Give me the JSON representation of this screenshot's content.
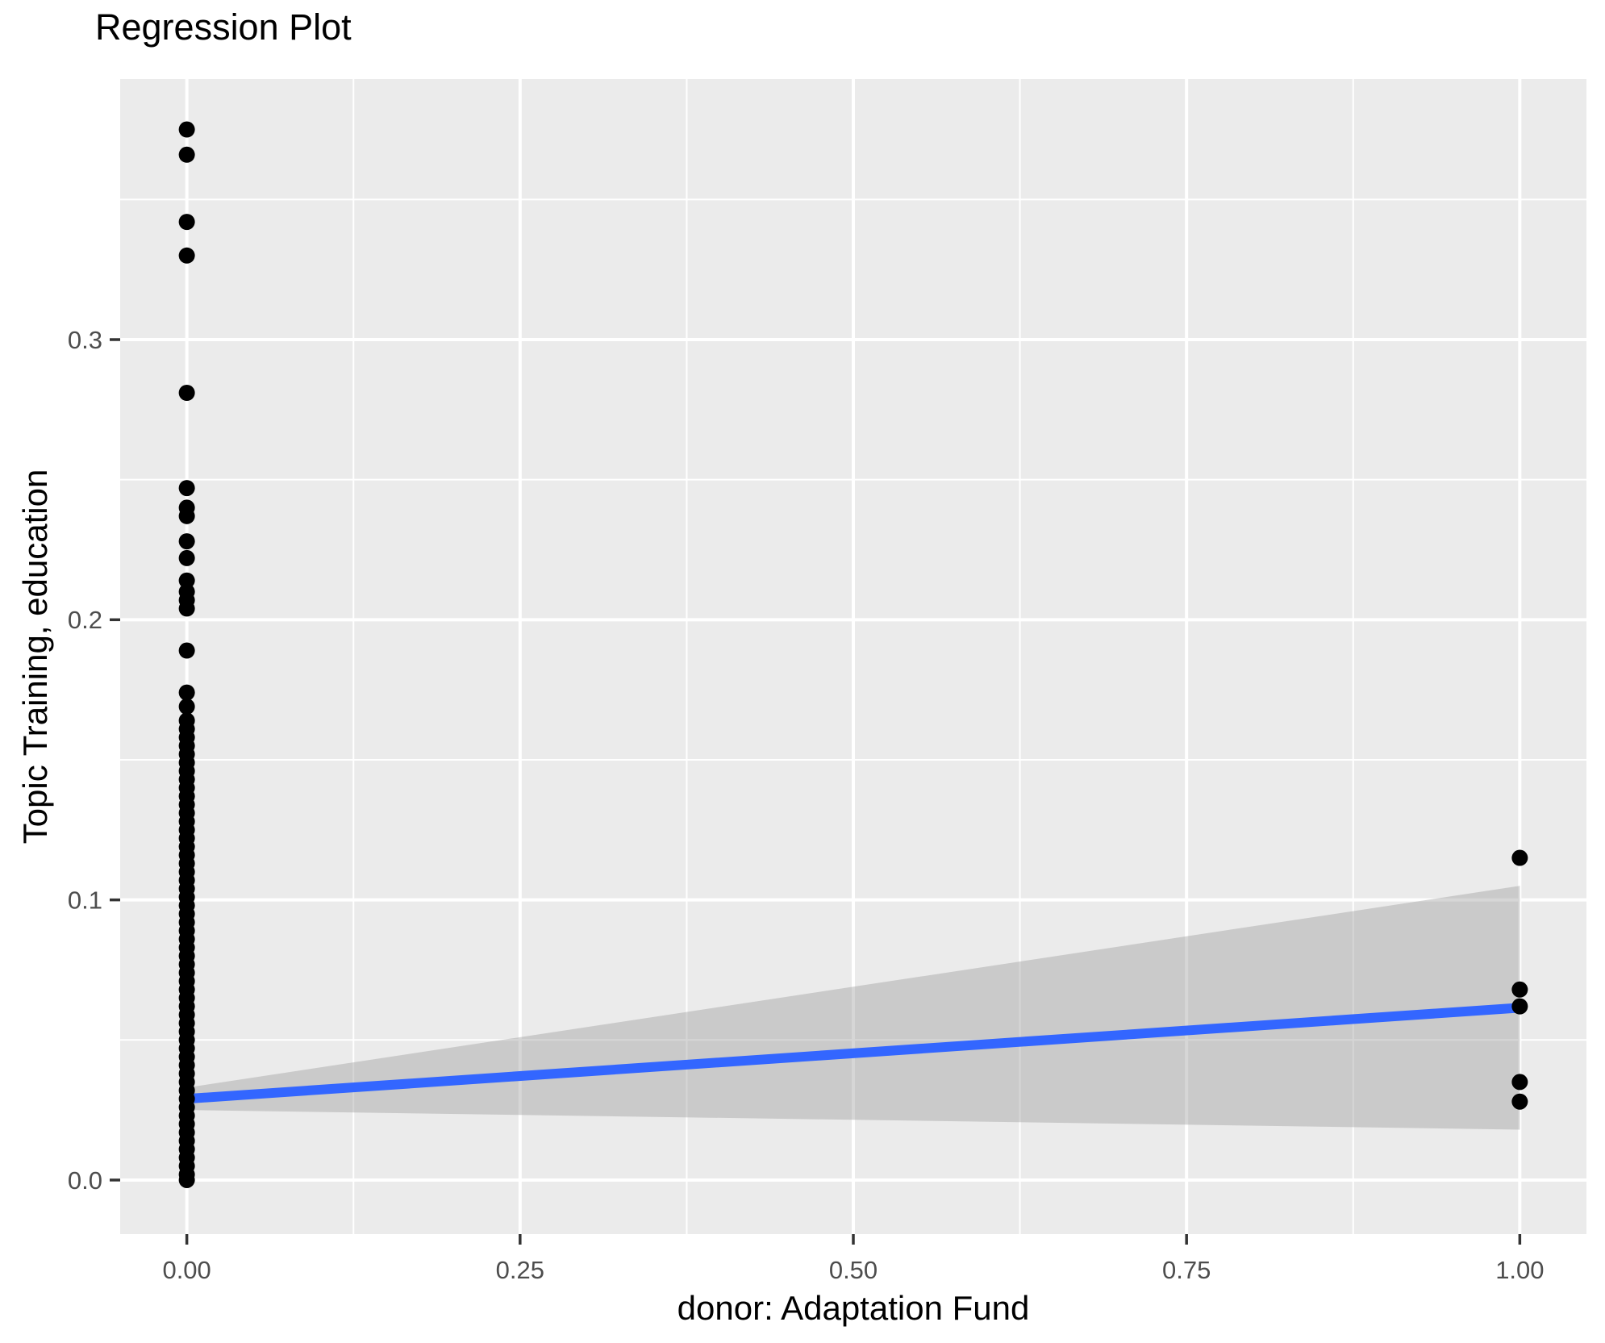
{
  "chart_data": {
    "type": "scatter",
    "title": "Regression Plot",
    "xlabel": "donor: Adaptation Fund",
    "ylabel": "Topic Training, education",
    "legend": "none",
    "grid": true,
    "xlim": [
      -0.05,
      1.05
    ],
    "ylim": [
      -0.0193,
      0.393
    ],
    "x_ticks": {
      "values": [
        0,
        0.25,
        0.5,
        0.75,
        1.0
      ],
      "labels": [
        "0.00",
        "0.25",
        "0.50",
        "0.75",
        "1.00"
      ]
    },
    "y_ticks": {
      "values": [
        0,
        0.1,
        0.2,
        0.3
      ],
      "labels": [
        "0.0",
        "0.1",
        "0.2",
        "0.3"
      ]
    },
    "x_minor": [
      0.125,
      0.375,
      0.625,
      0.875
    ],
    "y_minor": [
      0.05,
      0.15,
      0.25,
      0.35
    ],
    "series": [
      {
        "name": "donor = 0",
        "x": 0,
        "y": [
          0.375,
          0.366,
          0.342,
          0.33,
          0.281,
          0.247,
          0.24,
          0.237,
          0.228,
          0.222,
          0.214,
          0.21,
          0.207,
          0.204,
          0.189,
          0.174,
          0.169,
          0.164,
          0.161,
          0.158,
          0.155,
          0.152,
          0.149,
          0.146,
          0.143,
          0.14,
          0.137,
          0.134,
          0.131,
          0.128,
          0.125,
          0.122,
          0.119,
          0.116,
          0.113,
          0.11,
          0.107,
          0.104,
          0.101,
          0.098,
          0.095,
          0.092,
          0.089,
          0.086,
          0.083,
          0.08,
          0.077,
          0.074,
          0.071,
          0.068,
          0.065,
          0.062,
          0.059,
          0.056,
          0.053,
          0.05,
          0.047,
          0.044,
          0.041,
          0.038,
          0.035,
          0.032,
          0.029,
          0.026,
          0.023,
          0.02,
          0.017,
          0.014,
          0.011,
          0.008,
          0.005,
          0.002,
          0.0
        ]
      },
      {
        "name": "donor = 1",
        "x": 1,
        "y": [
          0.115,
          0.068,
          0.062,
          0.035,
          0.028
        ]
      }
    ],
    "regression_line": {
      "x": [
        0,
        1
      ],
      "y": [
        0.029,
        0.0615
      ],
      "color": "#3366FF"
    },
    "confidence_band": {
      "x": [
        0,
        1
      ],
      "upper": [
        0.033,
        0.105
      ],
      "lower": [
        0.025,
        0.018
      ],
      "fill": "#999999",
      "alpha": 0.4
    },
    "colors": {
      "panel": "#EBEBEB",
      "grid": "#FFFFFF",
      "point": "#000000",
      "tick_text": "#4D4D4D",
      "tick_mark": "#333333",
      "text": "#000000"
    }
  }
}
